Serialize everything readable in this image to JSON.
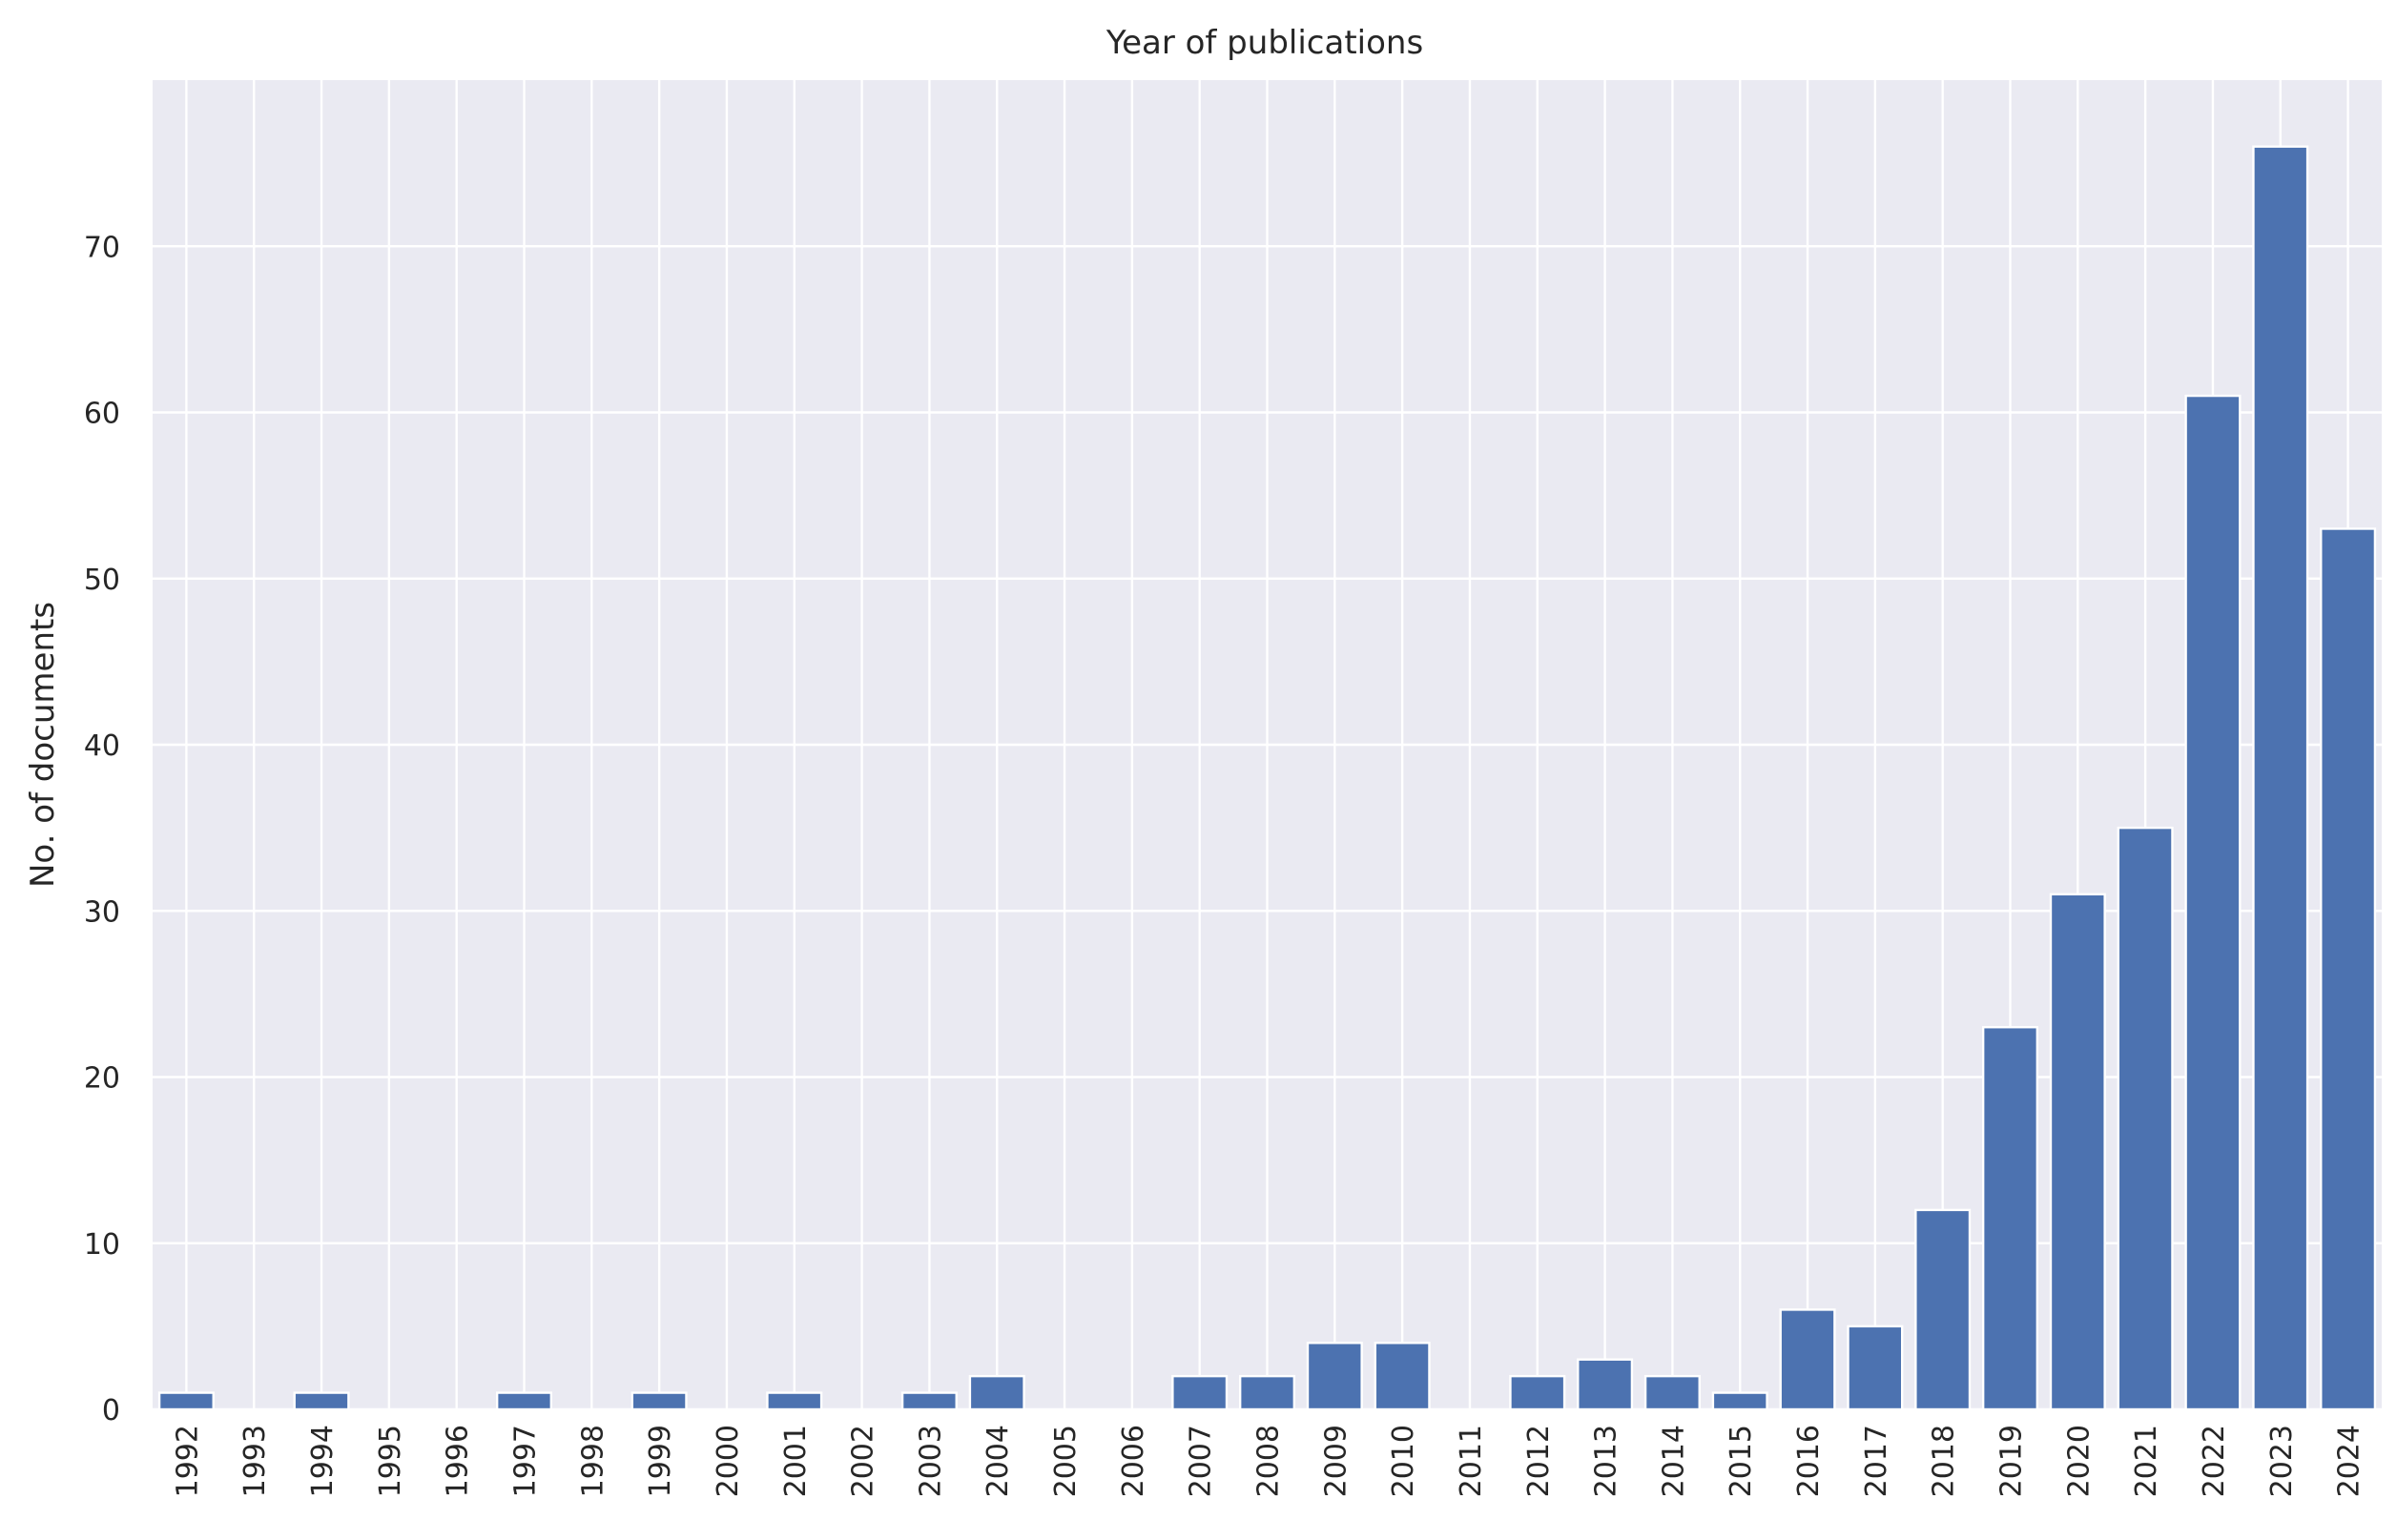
{
  "colors": {
    "plot_background": "#eaeaf2",
    "grid": "#ffffff",
    "bar": "#4c72b0",
    "text": "#262626"
  },
  "chart_data": {
    "type": "bar",
    "title": "Year of publications",
    "xlabel": "",
    "ylabel": "No. of documents",
    "categories": [
      "1992",
      "1993",
      "1994",
      "1995",
      "1996",
      "1997",
      "1998",
      "1999",
      "2000",
      "2001",
      "2002",
      "2003",
      "2004",
      "2005",
      "2006",
      "2007",
      "2008",
      "2009",
      "2010",
      "2011",
      "2012",
      "2013",
      "2014",
      "2015",
      "2016",
      "2017",
      "2018",
      "2019",
      "2020",
      "2021",
      "2022",
      "2023",
      "2024"
    ],
    "values": [
      1,
      0,
      1,
      0,
      0,
      1,
      0,
      1,
      0,
      1,
      0,
      1,
      2,
      0,
      0,
      2,
      2,
      4,
      4,
      0,
      2,
      3,
      2,
      1,
      6,
      5,
      12,
      23,
      31,
      35,
      61,
      76,
      53
    ],
    "ylim": [
      0,
      80
    ],
    "yticks": [
      0,
      10,
      20,
      30,
      40,
      50,
      60,
      70
    ],
    "grid": true,
    "legend": "none"
  }
}
